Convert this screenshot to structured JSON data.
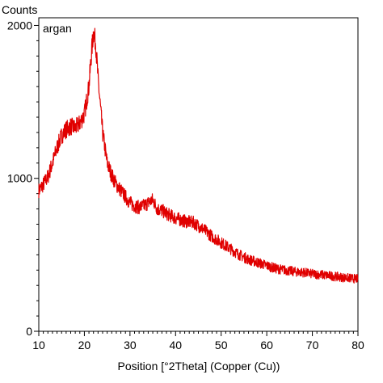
{
  "chart_data": {
    "type": "line",
    "ylabel": "Counts",
    "xlabel": "Position [°2Theta] (Copper (Cu))",
    "xlim": [
      10,
      80
    ],
    "ylim": [
      0,
      2050
    ],
    "xticks": [
      10,
      20,
      30,
      40,
      50,
      60,
      70,
      80
    ],
    "xtick_labels": [
      "10",
      "20",
      "30",
      "40",
      "50",
      "60",
      "70",
      "80"
    ],
    "yticks": [
      0,
      1000,
      2000
    ],
    "ytick_labels": [
      "0",
      "1000",
      "2000"
    ],
    "grid": false,
    "series": [
      {
        "name": "argan",
        "color": "#e00000",
        "points": [
          [
            10,
            920
          ],
          [
            11,
            960
          ],
          [
            12,
            1010
          ],
          [
            13,
            1100
          ],
          [
            14,
            1200
          ],
          [
            15,
            1280
          ],
          [
            16,
            1320
          ],
          [
            17,
            1340
          ],
          [
            18,
            1330
          ],
          [
            19,
            1360
          ],
          [
            20,
            1420
          ],
          [
            21,
            1600
          ],
          [
            21.5,
            1800
          ],
          [
            22,
            1960
          ],
          [
            22.5,
            1880
          ],
          [
            23,
            1650
          ],
          [
            24,
            1300
          ],
          [
            25,
            1100
          ],
          [
            26,
            1020
          ],
          [
            27,
            960
          ],
          [
            28,
            920
          ],
          [
            29,
            880
          ],
          [
            30,
            840
          ],
          [
            31,
            820
          ],
          [
            32,
            810
          ],
          [
            33,
            820
          ],
          [
            34,
            840
          ],
          [
            35,
            860
          ],
          [
            36,
            800
          ],
          [
            37,
            790
          ],
          [
            38,
            770
          ],
          [
            40,
            740
          ],
          [
            42,
            720
          ],
          [
            44,
            710
          ],
          [
            46,
            670
          ],
          [
            48,
            620
          ],
          [
            50,
            580
          ],
          [
            52,
            540
          ],
          [
            54,
            500
          ],
          [
            56,
            470
          ],
          [
            58,
            450
          ],
          [
            60,
            430
          ],
          [
            62,
            410
          ],
          [
            64,
            400
          ],
          [
            66,
            390
          ],
          [
            68,
            385
          ],
          [
            70,
            375
          ],
          [
            72,
            370
          ],
          [
            74,
            362
          ],
          [
            76,
            355
          ],
          [
            78,
            348
          ],
          [
            80,
            342
          ]
        ]
      }
    ]
  }
}
